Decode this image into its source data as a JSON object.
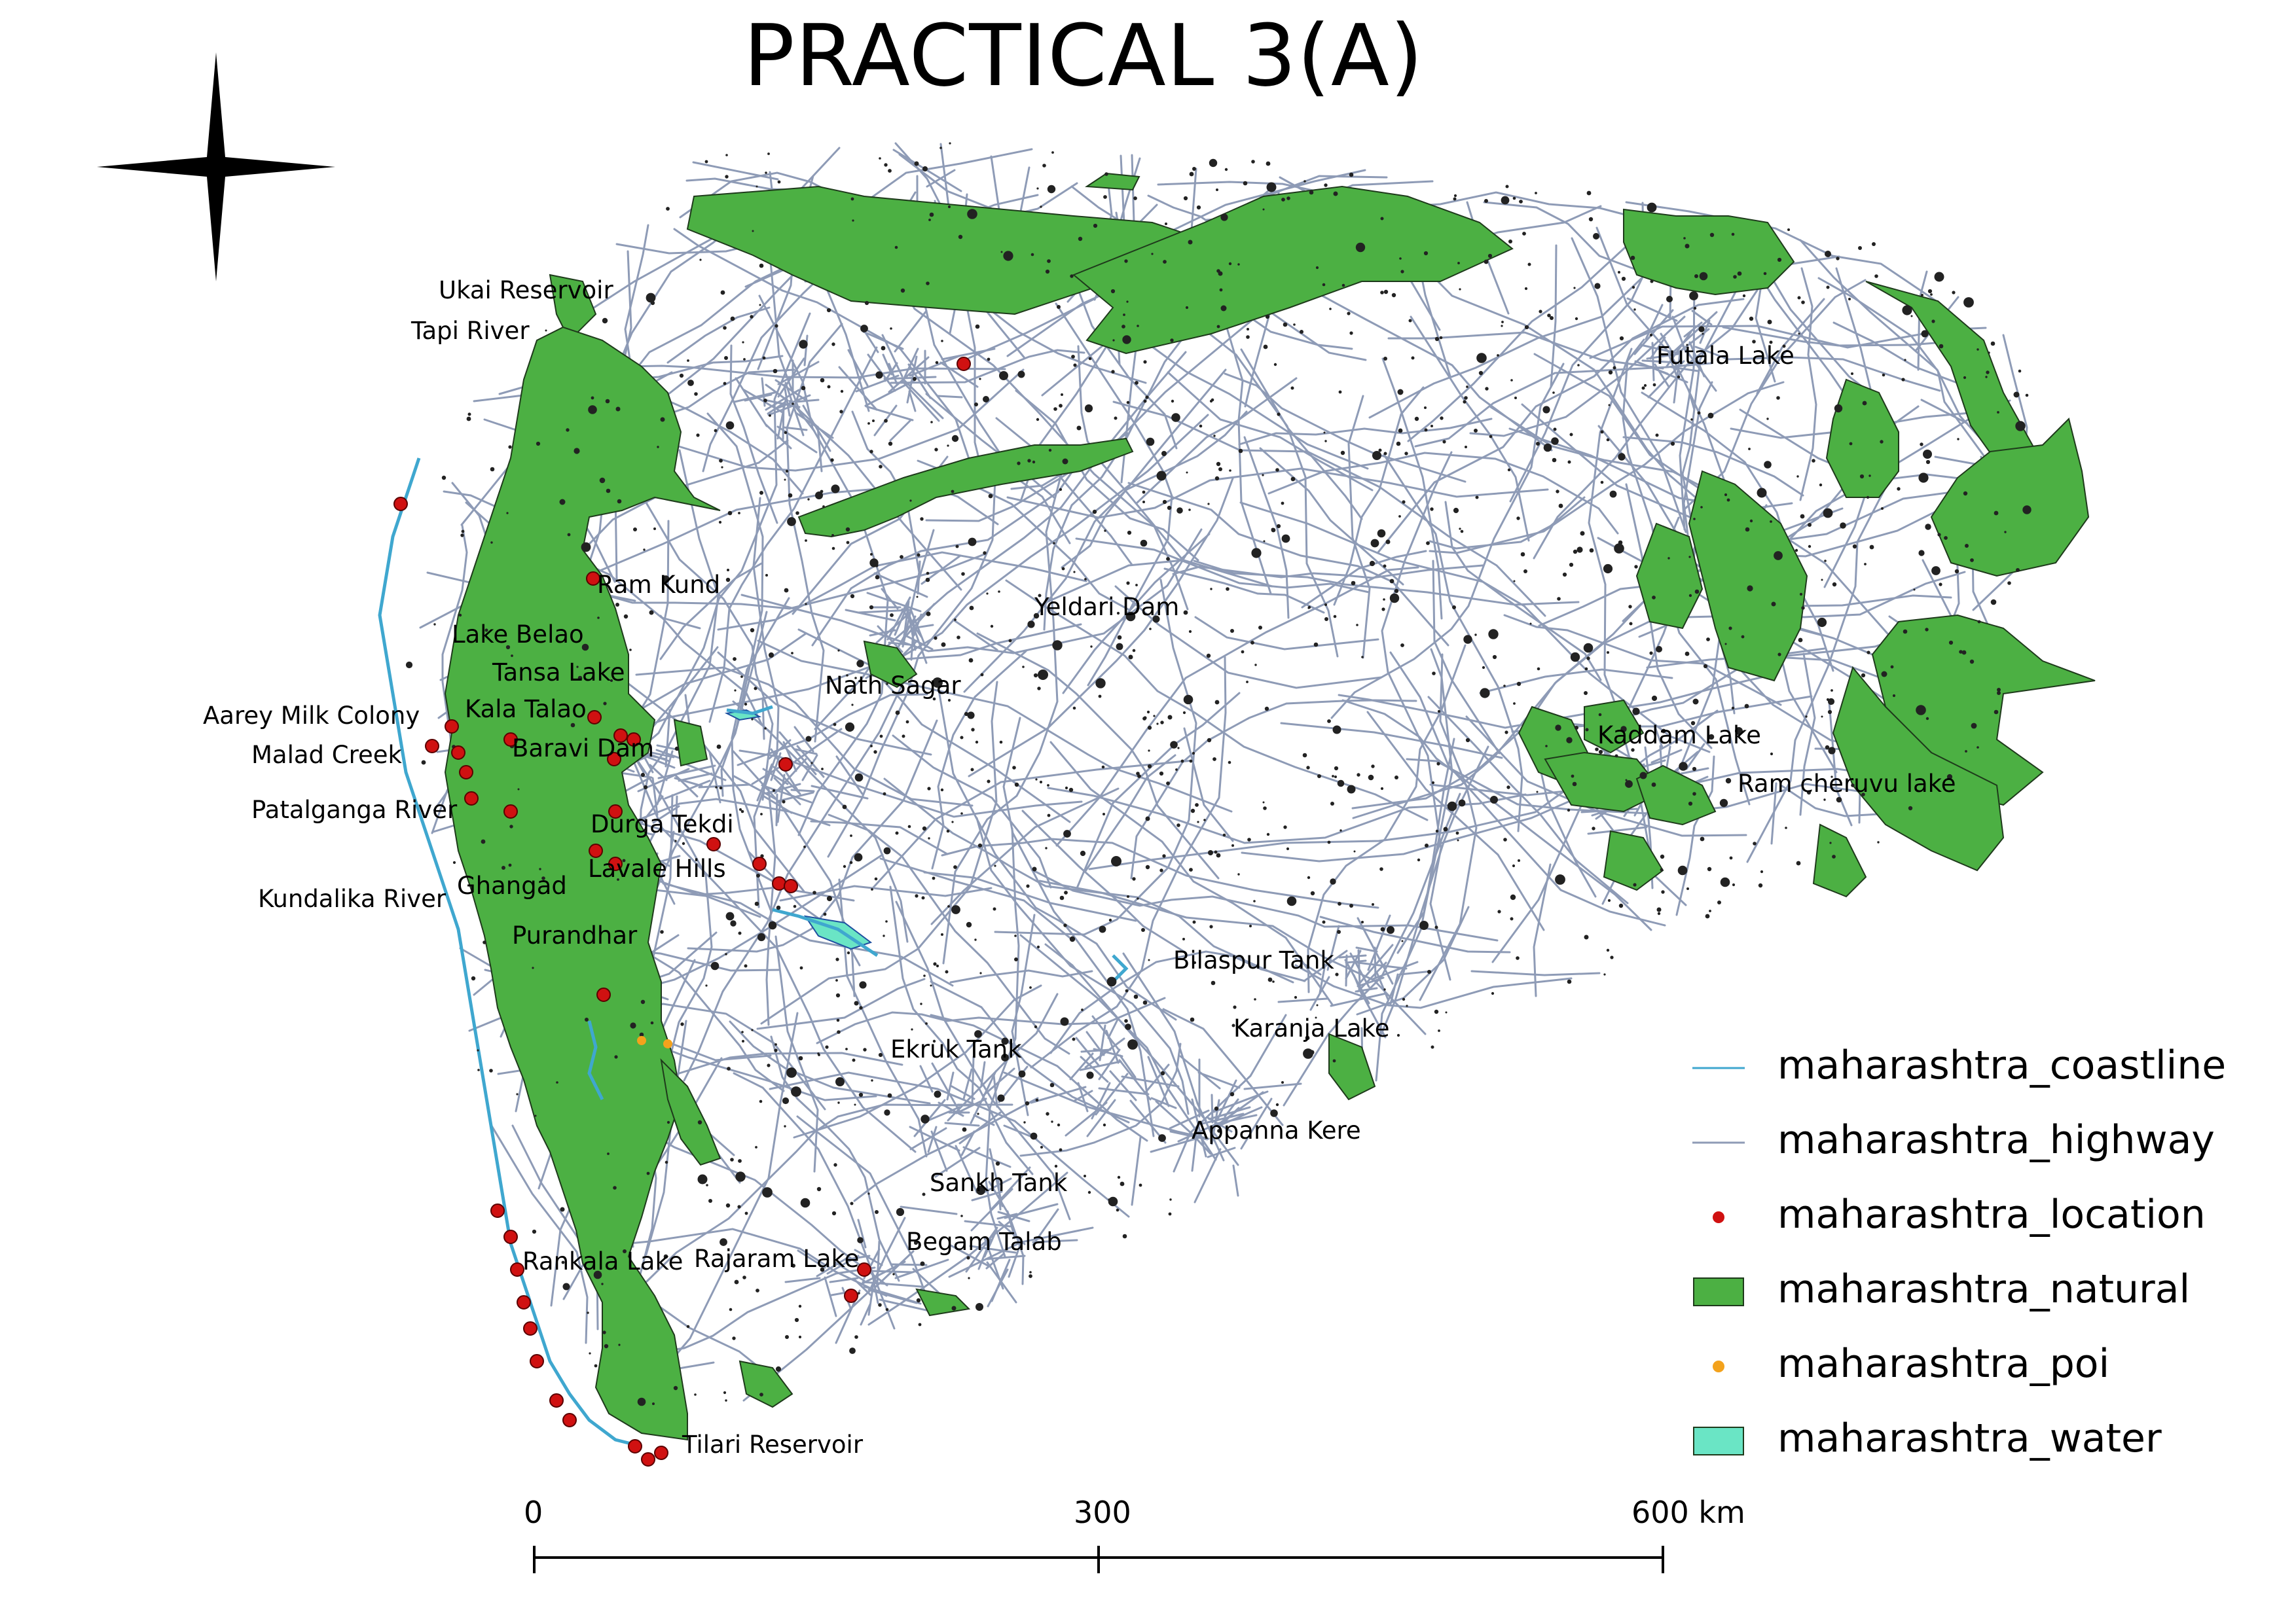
{
  "title": "PRACTICAL 3(A)",
  "north_arrow": "north-arrow-icon",
  "colors": {
    "natural": "#4cb043",
    "natural_stroke": "#1e3a1b",
    "highway": "#8e9bb6",
    "coastline": "#3fa7cf",
    "location": "#d01111",
    "poi": "#f3a21c",
    "water": "#6ae5c5",
    "buildings": "#222222"
  },
  "place_labels": [
    "Ukai Reservoir",
    "Tapi River",
    "Ram Kund",
    "Lake Belao",
    "Tansa Lake",
    "Aarey Milk Colony",
    "Kala Talao",
    "Malad Creek",
    "Baravi Dam",
    "Patalganga River",
    "Durga Tekdi",
    "Lavale Hills",
    "Ghangad",
    "Kundalika River",
    "Purandhar",
    "Nath Sagar",
    "Yeldari Dam",
    "Futala Lake",
    "Kaddam Lake",
    "Ram cheruvu lake",
    "Bilaspur Tank",
    "Karanja Lake",
    "Ekruk Tank",
    "Appanna Kere",
    "Sankh Tank",
    "Begam Talab",
    "Rankala Lake",
    "Rajaram Lake",
    "Tilari Reservoir"
  ],
  "legend": [
    {
      "label": "maharashtra_coastline",
      "symbol": "line"
    },
    {
      "label": "maharashtra_highway",
      "symbol": "line"
    },
    {
      "label": "maharashtra_location",
      "symbol": "dot"
    },
    {
      "label": "maharashtra_natural",
      "symbol": "fill"
    },
    {
      "label": "maharashtra_poi",
      "symbol": "dot"
    },
    {
      "label": "maharashtra_water",
      "symbol": "fill"
    }
  ],
  "scale_bar": {
    "ticks": [
      "0",
      "300",
      "600 km"
    ]
  }
}
